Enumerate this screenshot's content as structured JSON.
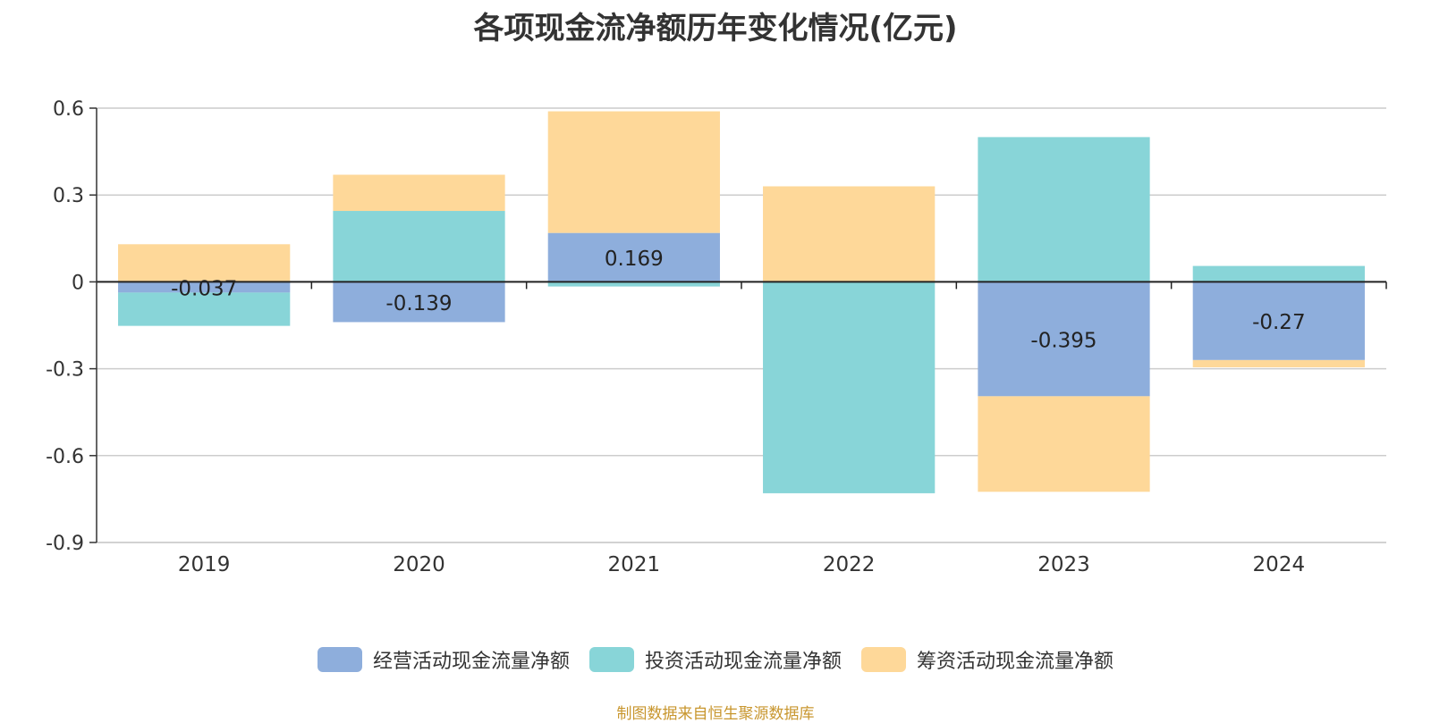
{
  "chart_data": {
    "type": "bar",
    "stacked": true,
    "title": "各项现金流净额历年变化情况(亿元)",
    "categories": [
      "2019",
      "2020",
      "2021",
      "2022",
      "2023",
      "2024"
    ],
    "ylim": [
      -0.9,
      0.6
    ],
    "yticks": [
      "0.6",
      "0.3",
      "0",
      "-0.3",
      "-0.6",
      "-0.9"
    ],
    "grid": true,
    "legend_position": "bottom",
    "series": [
      {
        "name": "经营活动现金流量净额",
        "color": "#8eaedc",
        "values": [
          -0.037,
          -0.139,
          0.169,
          0.0,
          -0.395,
          -0.27
        ],
        "labels": [
          "-0.037",
          "-0.139",
          "0.169",
          "",
          "-0.395",
          "-0.27"
        ]
      },
      {
        "name": "投资活动现金流量净额",
        "color": "#88d5d8",
        "values": [
          -0.115,
          0.245,
          -0.016,
          -0.73,
          0.5,
          0.055
        ],
        "labels": [
          "",
          "",
          "",
          "",
          "",
          ""
        ]
      },
      {
        "name": "筹资活动现金流量净额",
        "color": "#fed899",
        "values": [
          0.13,
          0.125,
          0.42,
          0.33,
          -0.33,
          -0.025
        ],
        "labels": [
          "",
          "",
          "",
          "",
          "",
          ""
        ]
      }
    ]
  },
  "source": "制图数据来自恒生聚源数据库"
}
